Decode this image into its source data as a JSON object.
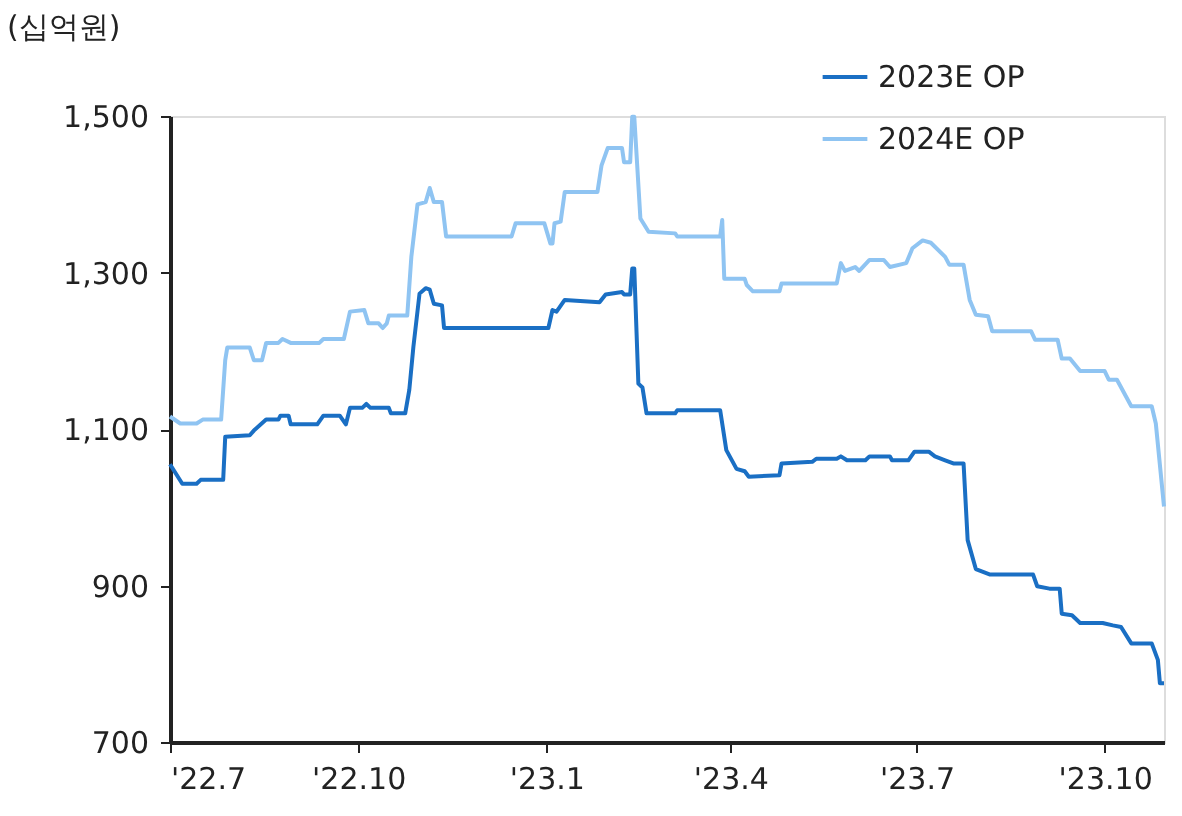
{
  "chart_data": {
    "type": "line",
    "ylabel": "(십억원)",
    "legend": "top right",
    "grid": false,
    "marker": "none",
    "line_style": "solid",
    "xlim": [
      "2022-07-01",
      "2023-10-30"
    ],
    "xticks": [
      {
        "value": "2022-07-01",
        "label": "'22.7"
      },
      {
        "value": "2022-10-01",
        "label": "'22.10"
      },
      {
        "value": "2023-01-01",
        "label": "'23.1"
      },
      {
        "value": "2023-04-01",
        "label": "'23.4"
      },
      {
        "value": "2023-07-01",
        "label": "'23.7"
      },
      {
        "value": "2023-10-01",
        "label": "'23.10"
      }
    ],
    "ylim": [
      700,
      1500
    ],
    "yticks": [
      700,
      900,
      {
        "value": 1100,
        "label": "1,100"
      },
      {
        "value": 1300,
        "label": "1,300"
      },
      {
        "value": 1500,
        "label": "1,500"
      }
    ],
    "series": [
      {
        "name": "2023E OP",
        "color": "#1a6fc4",
        "x": [
          "2022-07-01",
          "2022-07-07",
          "2022-07-14",
          "2022-07-16",
          "2022-07-27",
          "2022-07-28",
          "2022-08-09",
          "2022-08-11",
          "2022-08-17",
          "2022-08-23",
          "2022-08-24",
          "2022-08-28",
          "2022-08-29",
          "2022-09-11",
          "2022-09-14",
          "2022-09-22",
          "2022-09-25",
          "2022-09-27",
          "2022-10-03",
          "2022-10-05",
          "2022-10-07",
          "2022-10-16",
          "2022-10-17",
          "2022-10-24",
          "2022-10-26",
          "2022-10-28",
          "2022-10-31",
          "2022-11-03",
          "2022-11-05",
          "2022-11-07",
          "2022-11-11",
          "2022-11-12",
          "2023-01-02",
          "2023-01-04",
          "2023-01-06",
          "2023-01-10",
          "2023-01-27",
          "2023-01-30",
          "2023-02-07",
          "2023-02-08",
          "2023-02-11",
          "2023-02-12",
          "2023-02-13",
          "2023-02-15",
          "2023-02-17",
          "2023-02-19",
          "2023-03-05",
          "2023-03-06",
          "2023-03-27",
          "2023-03-30",
          "2023-04-04",
          "2023-04-08",
          "2023-04-10",
          "2023-04-25",
          "2023-04-26",
          "2023-05-11",
          "2023-05-13",
          "2023-05-23",
          "2023-05-25",
          "2023-05-28",
          "2023-06-03",
          "2023-06-06",
          "2023-06-08",
          "2023-06-18",
          "2023-06-19",
          "2023-06-27",
          "2023-06-30",
          "2023-07-07",
          "2023-07-10",
          "2023-07-15",
          "2023-07-19",
          "2023-07-24",
          "2023-07-26",
          "2023-07-30",
          "2023-08-06",
          "2023-08-27",
          "2023-08-29",
          "2023-09-04",
          "2023-09-09",
          "2023-09-10",
          "2023-09-15",
          "2023-09-19",
          "2023-09-30",
          "2023-10-05",
          "2023-10-09",
          "2023-10-14",
          "2023-10-24",
          "2023-10-27",
          "2023-10-28",
          "2023-10-30"
        ],
        "values": [
          1055,
          1030,
          1030,
          1035,
          1035,
          1090,
          1092,
          1098,
          1112,
          1112,
          1117,
          1117,
          1106,
          1106,
          1117,
          1117,
          1106,
          1127,
          1127,
          1132,
          1127,
          1127,
          1120,
          1120,
          1150,
          1205,
          1273,
          1280,
          1278,
          1260,
          1258,
          1229,
          1229,
          1252,
          1250,
          1265,
          1262,
          1272,
          1275,
          1272,
          1272,
          1305,
          1305,
          1158,
          1153,
          1120,
          1120,
          1124,
          1124,
          1073,
          1049,
          1046,
          1039,
          1041,
          1056,
          1058,
          1062,
          1062,
          1065,
          1060,
          1060,
          1060,
          1065,
          1065,
          1060,
          1060,
          1071,
          1071,
          1065,
          1060,
          1056,
          1056,
          958,
          921,
          914,
          914,
          899,
          896,
          896,
          864,
          862,
          852,
          852,
          849,
          847,
          826,
          826,
          805,
          775,
          775
        ]
      },
      {
        "name": "2024E OP",
        "color": "#8fc4f2",
        "x": [
          "2022-07-01",
          "2022-07-06",
          "2022-07-14",
          "2022-07-17",
          "2022-07-26",
          "2022-07-28",
          "2022-07-29",
          "2022-08-09",
          "2022-08-11",
          "2022-08-15",
          "2022-08-17",
          "2022-08-23",
          "2022-08-25",
          "2022-08-29",
          "2022-09-12",
          "2022-09-14",
          "2022-09-24",
          "2022-09-27",
          "2022-10-04",
          "2022-10-06",
          "2022-10-11",
          "2022-10-13",
          "2022-10-15",
          "2022-10-16",
          "2022-10-25",
          "2022-10-27",
          "2022-10-30",
          "2022-11-03",
          "2022-11-05",
          "2022-11-07",
          "2022-11-11",
          "2022-11-13",
          "2022-12-15",
          "2022-12-17",
          "2022-12-31",
          "2023-01-03",
          "2023-01-04",
          "2023-01-05",
          "2023-01-08",
          "2023-01-10",
          "2023-01-26",
          "2023-01-28",
          "2023-01-31",
          "2023-02-07",
          "2023-02-08",
          "2023-02-11",
          "2023-02-12",
          "2023-02-13",
          "2023-02-16",
          "2023-02-20",
          "2023-03-05",
          "2023-03-06",
          "2023-03-27",
          "2023-03-28",
          "2023-03-29",
          "2023-04-08",
          "2023-04-09",
          "2023-04-12",
          "2023-04-25",
          "2023-04-26",
          "2023-05-23",
          "2023-05-25",
          "2023-05-27",
          "2023-06-01",
          "2023-06-03",
          "2023-06-08",
          "2023-06-15",
          "2023-06-18",
          "2023-06-26",
          "2023-06-29",
          "2023-07-04",
          "2023-07-08",
          "2023-07-15",
          "2023-07-17",
          "2023-07-24",
          "2023-07-27",
          "2023-07-30",
          "2023-08-05",
          "2023-08-07",
          "2023-08-26",
          "2023-08-28",
          "2023-09-08",
          "2023-09-10",
          "2023-09-14",
          "2023-09-19",
          "2023-10-01",
          "2023-10-03",
          "2023-10-07",
          "2023-10-14",
          "2023-10-24",
          "2023-10-26",
          "2023-10-30"
        ],
        "values": [
          1116,
          1107,
          1107,
          1112,
          1112,
          1188,
          1204,
          1204,
          1188,
          1188,
          1210,
          1210,
          1215,
          1210,
          1210,
          1215,
          1215,
          1250,
          1252,
          1235,
          1235,
          1229,
          1235,
          1245,
          1245,
          1320,
          1387,
          1390,
          1408,
          1390,
          1390,
          1346,
          1346,
          1363,
          1363,
          1337,
          1337,
          1363,
          1365,
          1403,
          1403,
          1437,
          1459,
          1459,
          1441,
          1441,
          1499,
          1499,
          1369,
          1352,
          1350,
          1346,
          1346,
          1367,
          1292,
          1292,
          1284,
          1276,
          1276,
          1286,
          1286,
          1312,
          1302,
          1307,
          1302,
          1316,
          1316,
          1307,
          1312,
          1331,
          1341,
          1338,
          1320,
          1310,
          1310,
          1265,
          1246,
          1244,
          1225,
          1225,
          1214,
          1214,
          1190,
          1190,
          1174,
          1174,
          1163,
          1163,
          1129,
          1129,
          1107,
          1001
        ]
      }
    ]
  }
}
